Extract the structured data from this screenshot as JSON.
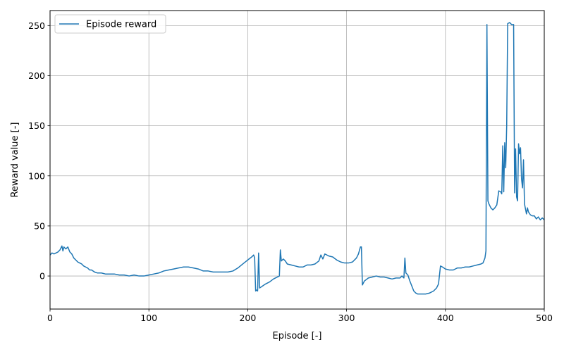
{
  "chart_data": {
    "type": "line",
    "xlabel": "Episode [-]",
    "ylabel": "Reward value [-]",
    "xlim": [
      0,
      500
    ],
    "ylim": [
      -33,
      265
    ],
    "xticks": [
      0,
      100,
      200,
      300,
      400,
      500
    ],
    "yticks": [
      0,
      50,
      100,
      150,
      200,
      250
    ],
    "grid": true,
    "legend_position": "top-left",
    "series": [
      {
        "name": "Episode reward",
        "color": "#1f77b4",
        "points": [
          [
            0,
            21
          ],
          [
            2,
            23
          ],
          [
            4,
            22
          ],
          [
            6,
            23
          ],
          [
            8,
            24
          ],
          [
            10,
            26
          ],
          [
            12,
            30
          ],
          [
            13,
            25
          ],
          [
            14,
            29
          ],
          [
            16,
            27
          ],
          [
            18,
            29
          ],
          [
            20,
            24
          ],
          [
            22,
            22
          ],
          [
            24,
            18
          ],
          [
            26,
            16
          ],
          [
            28,
            14
          ],
          [
            30,
            13
          ],
          [
            32,
            12
          ],
          [
            34,
            10
          ],
          [
            36,
            9
          ],
          [
            38,
            8
          ],
          [
            40,
            6
          ],
          [
            42,
            6
          ],
          [
            45,
            4
          ],
          [
            48,
            3
          ],
          [
            52,
            3
          ],
          [
            56,
            2
          ],
          [
            60,
            2
          ],
          [
            65,
            2
          ],
          [
            70,
            1
          ],
          [
            75,
            1
          ],
          [
            80,
            0
          ],
          [
            85,
            1
          ],
          [
            90,
            0
          ],
          [
            95,
            0
          ],
          [
            100,
            1
          ],
          [
            105,
            2
          ],
          [
            110,
            3
          ],
          [
            115,
            5
          ],
          [
            120,
            6
          ],
          [
            125,
            7
          ],
          [
            130,
            8
          ],
          [
            135,
            9
          ],
          [
            140,
            9
          ],
          [
            145,
            8
          ],
          [
            150,
            7
          ],
          [
            155,
            5
          ],
          [
            160,
            5
          ],
          [
            165,
            4
          ],
          [
            170,
            4
          ],
          [
            175,
            4
          ],
          [
            180,
            4
          ],
          [
            185,
            5
          ],
          [
            190,
            8
          ],
          [
            195,
            12
          ],
          [
            200,
            16
          ],
          [
            204,
            19
          ],
          [
            206,
            21
          ],
          [
            207,
            18
          ],
          [
            208,
            -15
          ],
          [
            209,
            -14
          ],
          [
            210,
            -15
          ],
          [
            211,
            23
          ],
          [
            212,
            -12
          ],
          [
            215,
            -10
          ],
          [
            218,
            -8
          ],
          [
            222,
            -6
          ],
          [
            226,
            -3
          ],
          [
            230,
            -1
          ],
          [
            232,
            0
          ],
          [
            233,
            26
          ],
          [
            234,
            15
          ],
          [
            236,
            17
          ],
          [
            238,
            15
          ],
          [
            240,
            12
          ],
          [
            244,
            11
          ],
          [
            248,
            10
          ],
          [
            252,
            9
          ],
          [
            256,
            9
          ],
          [
            260,
            11
          ],
          [
            264,
            11
          ],
          [
            268,
            12
          ],
          [
            272,
            15
          ],
          [
            274,
            21
          ],
          [
            276,
            17
          ],
          [
            278,
            22
          ],
          [
            282,
            20
          ],
          [
            286,
            19
          ],
          [
            290,
            16
          ],
          [
            294,
            14
          ],
          [
            298,
            13
          ],
          [
            302,
            13
          ],
          [
            306,
            14
          ],
          [
            310,
            18
          ],
          [
            312,
            22
          ],
          [
            314,
            29
          ],
          [
            315,
            29
          ],
          [
            316,
            -9
          ],
          [
            318,
            -5
          ],
          [
            322,
            -2
          ],
          [
            326,
            -1
          ],
          [
            330,
            0
          ],
          [
            334,
            -1
          ],
          [
            338,
            -1
          ],
          [
            342,
            -2
          ],
          [
            346,
            -3
          ],
          [
            350,
            -2
          ],
          [
            354,
            -2
          ],
          [
            356,
            0
          ],
          [
            358,
            -2
          ],
          [
            359,
            18
          ],
          [
            360,
            3
          ],
          [
            362,
            1
          ],
          [
            364,
            -5
          ],
          [
            366,
            -10
          ],
          [
            368,
            -15
          ],
          [
            370,
            -17
          ],
          [
            372,
            -18
          ],
          [
            376,
            -18
          ],
          [
            380,
            -18
          ],
          [
            384,
            -17
          ],
          [
            388,
            -15
          ],
          [
            391,
            -12
          ],
          [
            393,
            -8
          ],
          [
            395,
            10
          ],
          [
            397,
            9
          ],
          [
            400,
            7
          ],
          [
            404,
            6
          ],
          [
            408,
            6
          ],
          [
            412,
            8
          ],
          [
            416,
            8
          ],
          [
            420,
            9
          ],
          [
            424,
            9
          ],
          [
            428,
            10
          ],
          [
            432,
            11
          ],
          [
            436,
            12
          ],
          [
            438,
            13
          ],
          [
            440,
            18
          ],
          [
            441,
            25
          ],
          [
            442,
            251
          ],
          [
            443,
            75
          ],
          [
            444,
            72
          ],
          [
            446,
            68
          ],
          [
            448,
            66
          ],
          [
            450,
            68
          ],
          [
            452,
            71
          ],
          [
            454,
            85
          ],
          [
            456,
            84
          ],
          [
            457,
            82
          ],
          [
            458,
            130
          ],
          [
            459,
            84
          ],
          [
            460,
            133
          ],
          [
            461,
            108
          ],
          [
            462,
            150
          ],
          [
            463,
            252
          ],
          [
            465,
            253
          ],
          [
            467,
            251
          ],
          [
            469,
            251
          ],
          [
            470,
            83
          ],
          [
            471,
            127
          ],
          [
            472,
            79
          ],
          [
            473,
            75
          ],
          [
            474,
            132
          ],
          [
            475,
            122
          ],
          [
            476,
            128
          ],
          [
            477,
            97
          ],
          [
            478,
            88
          ],
          [
            479,
            116
          ],
          [
            480,
            72
          ],
          [
            481,
            67
          ],
          [
            482,
            62
          ],
          [
            483,
            68
          ],
          [
            484,
            64
          ],
          [
            486,
            61
          ],
          [
            488,
            60
          ],
          [
            490,
            60
          ],
          [
            492,
            57
          ],
          [
            494,
            59
          ],
          [
            496,
            56
          ],
          [
            498,
            58
          ],
          [
            500,
            56
          ]
        ]
      }
    ]
  }
}
